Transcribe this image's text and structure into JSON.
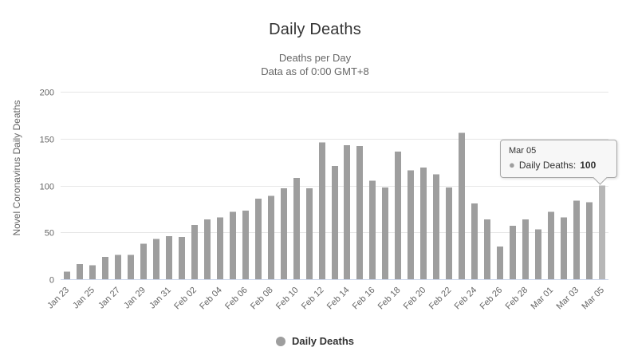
{
  "chart_data": {
    "type": "bar",
    "title": "Daily Deaths",
    "subtitle": [
      "Deaths per Day",
      "Data as of 0:00 GMT+8"
    ],
    "ylabel": "Novel Coronavirus Daily Deaths",
    "xlabel": "",
    "series_name": "Daily Deaths",
    "categories": [
      "Jan 23",
      "Jan 24",
      "Jan 25",
      "Jan 26",
      "Jan 27",
      "Jan 28",
      "Jan 29",
      "Jan 30",
      "Jan 31",
      "Feb 01",
      "Feb 02",
      "Feb 03",
      "Feb 04",
      "Feb 05",
      "Feb 06",
      "Feb 07",
      "Feb 08",
      "Feb 09",
      "Feb 10",
      "Feb 11",
      "Feb 12",
      "Feb 13",
      "Feb 14",
      "Feb 15",
      "Feb 16",
      "Feb 17",
      "Feb 18",
      "Feb 19",
      "Feb 20",
      "Feb 21",
      "Feb 22",
      "Feb 23",
      "Feb 24",
      "Feb 25",
      "Feb 26",
      "Feb 27",
      "Feb 28",
      "Feb 29",
      "Mar 01",
      "Mar 02",
      "Mar 03",
      "Mar 04",
      "Mar 05"
    ],
    "values": [
      8,
      16,
      15,
      24,
      26,
      26,
      38,
      43,
      46,
      45,
      58,
      64,
      66,
      72,
      73,
      86,
      89,
      97,
      108,
      97,
      146,
      121,
      143,
      142,
      105,
      98,
      136,
      116,
      119,
      112,
      98,
      156,
      81,
      64,
      35,
      57,
      64,
      53,
      72,
      66,
      84,
      82,
      100
    ],
    "ylim": [
      0,
      200
    ],
    "yticks": [
      0,
      50,
      100,
      150,
      200
    ],
    "x_label_step": 2,
    "grid": true,
    "legend_position": "bottom-center",
    "highlighted_index": 42,
    "highlighted_category": "Mar 05",
    "highlighted_value": 100
  },
  "tooltip": {
    "header": "Mar 05",
    "series_label": "Daily Deaths:",
    "value": "100",
    "bullet": "●"
  },
  "legend": {
    "label": "Daily Deaths"
  },
  "colors": {
    "bar": "#9e9e9e",
    "bar_hover": "#b7b7b7",
    "grid": "#e6e6e6",
    "axis_line": "#ccd6eb",
    "title": "#333333",
    "subtitle": "#666666",
    "axis_label": "#666666",
    "legend_text": "#333333",
    "tooltip_bg": "#f7f7f7",
    "tooltip_border": "#a8a8a8"
  }
}
